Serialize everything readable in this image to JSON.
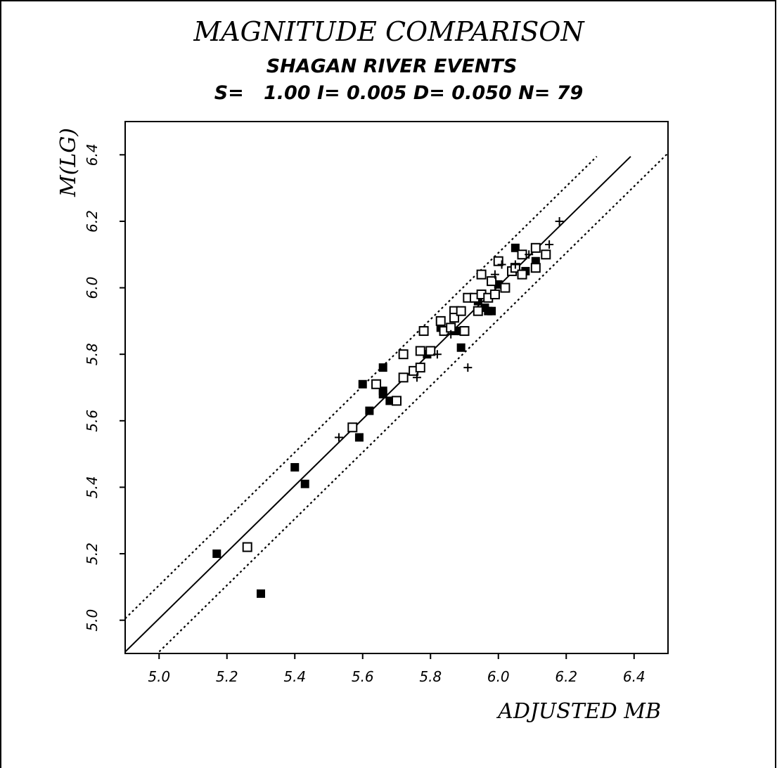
{
  "chart_data": {
    "type": "scatter",
    "title": "MAGNITUDE COMPARISON",
    "subtitle": "SHAGAN RIVER EVENTS",
    "stats_line": "S=   1.00 I= 0.005 D= 0.050 N= 79",
    "xlabel": "ADJUSTED MB",
    "ylabel": "M(LG)",
    "xlim": [
      4.9,
      6.5
    ],
    "ylim": [
      4.9,
      6.5
    ],
    "xticks": [
      "5.0",
      "5.2",
      "5.4",
      "5.6",
      "5.8",
      "6.0",
      "6.2",
      "6.4"
    ],
    "yticks": [
      "5.0",
      "5.2",
      "5.4",
      "5.6",
      "5.8",
      "6.0",
      "6.2",
      "6.4"
    ],
    "grid": false,
    "fit_line": {
      "slope": 1.0,
      "intercept": 0.005,
      "band": 0.1,
      "x_range": [
        4.9,
        6.39
      ]
    },
    "series": [
      {
        "marker": "filled-square",
        "points": [
          [
            5.17,
            5.2
          ],
          [
            5.3,
            5.08
          ],
          [
            5.4,
            5.46
          ],
          [
            5.43,
            5.41
          ],
          [
            5.59,
            5.55
          ],
          [
            5.6,
            5.71
          ],
          [
            5.62,
            5.63
          ],
          [
            5.66,
            5.76
          ],
          [
            5.66,
            5.69
          ],
          [
            5.66,
            5.68
          ],
          [
            5.68,
            5.66
          ],
          [
            5.79,
            5.8
          ],
          [
            5.83,
            5.88
          ],
          [
            5.87,
            5.87
          ],
          [
            5.89,
            5.87
          ],
          [
            5.89,
            5.82
          ],
          [
            5.93,
            5.97
          ],
          [
            5.94,
            5.96
          ],
          [
            5.96,
            5.94
          ],
          [
            5.97,
            5.93
          ],
          [
            5.98,
            5.93
          ],
          [
            6.0,
            6.01
          ],
          [
            6.05,
            6.12
          ],
          [
            6.08,
            6.05
          ],
          [
            6.11,
            6.08
          ]
        ]
      },
      {
        "marker": "open-square",
        "points": [
          [
            5.26,
            5.22
          ],
          [
            5.57,
            5.58
          ],
          [
            5.64,
            5.71
          ],
          [
            5.7,
            5.66
          ],
          [
            5.72,
            5.73
          ],
          [
            5.72,
            5.8
          ],
          [
            5.75,
            5.75
          ],
          [
            5.77,
            5.76
          ],
          [
            5.77,
            5.81
          ],
          [
            5.78,
            5.87
          ],
          [
            5.8,
            5.81
          ],
          [
            5.83,
            5.9
          ],
          [
            5.84,
            5.87
          ],
          [
            5.86,
            5.88
          ],
          [
            5.87,
            5.93
          ],
          [
            5.87,
            5.91
          ],
          [
            5.89,
            5.93
          ],
          [
            5.9,
            5.87
          ],
          [
            5.91,
            5.97
          ],
          [
            5.93,
            5.97
          ],
          [
            5.94,
            5.93
          ],
          [
            5.95,
            6.04
          ],
          [
            5.95,
            5.98
          ],
          [
            5.97,
            5.97
          ],
          [
            5.98,
            6.02
          ],
          [
            5.99,
            5.98
          ],
          [
            6.0,
            6.08
          ],
          [
            6.02,
            6.0
          ],
          [
            6.04,
            6.05
          ],
          [
            6.05,
            6.06
          ],
          [
            6.07,
            6.04
          ],
          [
            6.07,
            6.1
          ],
          [
            6.11,
            6.06
          ],
          [
            6.11,
            6.12
          ],
          [
            6.14,
            6.1
          ]
        ]
      },
      {
        "marker": "plus",
        "points": [
          [
            5.53,
            5.55
          ],
          [
            5.76,
            5.73
          ],
          [
            5.82,
            5.8
          ],
          [
            5.86,
            5.86
          ],
          [
            5.91,
            5.76
          ],
          [
            5.99,
            6.04
          ],
          [
            6.01,
            6.07
          ],
          [
            6.05,
            6.07
          ],
          [
            6.09,
            6.1
          ],
          [
            6.15,
            6.13
          ],
          [
            6.18,
            6.2
          ]
        ]
      }
    ]
  }
}
